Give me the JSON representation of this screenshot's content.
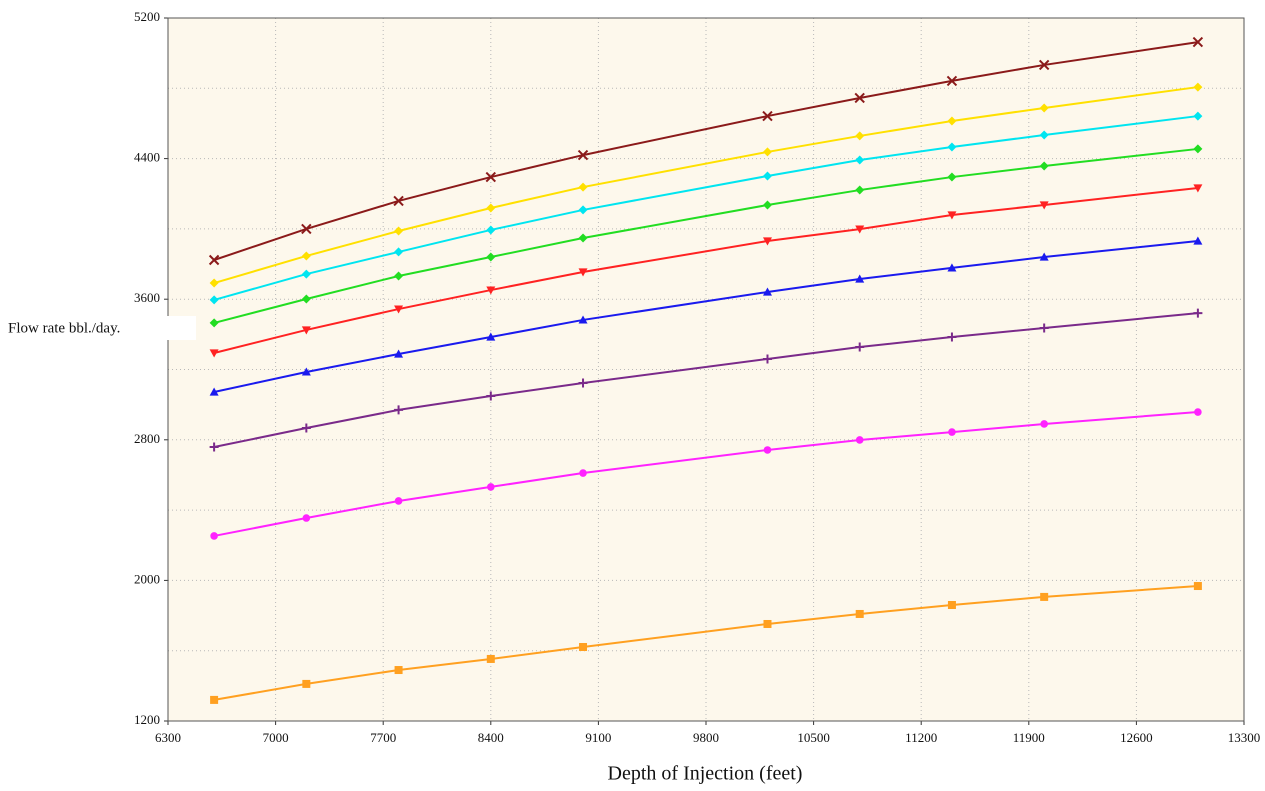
{
  "chart_data": {
    "type": "line",
    "xlabel": "Depth of Injection (feet)",
    "ylabel": "Flow rate bbl./day.",
    "x": [
      6600,
      7200,
      7800,
      8400,
      9000,
      10200,
      10800,
      11400,
      12000,
      13000
    ],
    "series": [
      {
        "color": "#8b1a1a",
        "marker": "x",
        "values": [
          3823,
          4000,
          4159,
          4295,
          4420,
          4642,
          4745,
          4842,
          4933,
          5063
        ]
      },
      {
        "color": "#ffe000",
        "marker": "diamond",
        "values": [
          3692,
          3846,
          3988,
          4119,
          4238,
          4438,
          4529,
          4614,
          4688,
          4807
        ]
      },
      {
        "color": "#00e5f0",
        "marker": "diamond",
        "values": [
          3596,
          3743,
          3869,
          3994,
          4108,
          4301,
          4392,
          4466,
          4534,
          4642
        ]
      },
      {
        "color": "#22dd22",
        "marker": "diamond",
        "values": [
          3465,
          3601,
          3732,
          3840,
          3948,
          4136,
          4221,
          4295,
          4358,
          4455
        ]
      },
      {
        "color": "#ff2222",
        "marker": "triangle-down",
        "values": [
          3294,
          3425,
          3544,
          3652,
          3755,
          3931,
          3999,
          4079,
          4136,
          4233
        ]
      },
      {
        "color": "#1a1aee",
        "marker": "triangle-up",
        "values": [
          3072,
          3186,
          3288,
          3385,
          3482,
          3641,
          3715,
          3778,
          3840,
          3931
        ]
      },
      {
        "color": "#7a2a8a",
        "marker": "plus",
        "values": [
          2759,
          2867,
          2970,
          3049,
          3123,
          3260,
          3328,
          3385,
          3436,
          3521
        ]
      },
      {
        "color": "#ff22ff",
        "marker": "circle",
        "values": [
          2253,
          2355,
          2452,
          2532,
          2611,
          2742,
          2799,
          2844,
          2890,
          2958
        ]
      },
      {
        "color": "#ffa020",
        "marker": "square",
        "values": [
          1320,
          1411,
          1490,
          1553,
          1621,
          1752,
          1809,
          1860,
          1906,
          1968
        ]
      }
    ],
    "xlim": [
      6300,
      13300
    ],
    "xticks": [
      6300,
      7000,
      7700,
      8400,
      9100,
      9800,
      10500,
      11200,
      11900,
      12600,
      13300
    ],
    "ylim": [
      1200,
      5200
    ],
    "yticks": [
      1200,
      2000,
      2800,
      3600,
      4400,
      5200
    ],
    "yticks_minor": [
      1600,
      2400,
      3200,
      4000,
      4800
    ],
    "grid": true,
    "background": "#fdf8ec"
  }
}
